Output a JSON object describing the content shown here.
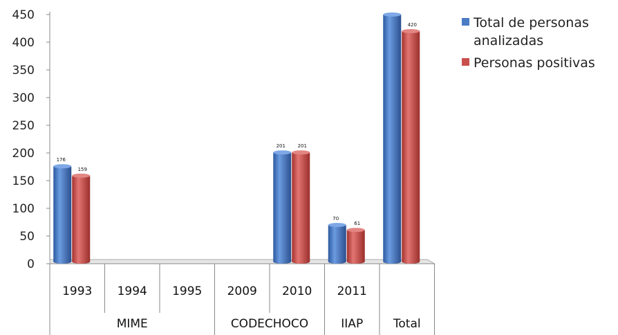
{
  "chart_data": {
    "type": "bar",
    "ylim": [
      0,
      450
    ],
    "yticks": [
      0,
      50,
      100,
      150,
      200,
      250,
      300,
      350,
      400,
      450
    ],
    "categories": [
      "1993",
      "1994",
      "1995",
      "2009",
      "2010",
      "2011",
      "Total"
    ],
    "groups": [
      {
        "label": "MIME",
        "categories": [
          "1993",
          "1994",
          "1995"
        ]
      },
      {
        "label": "CODECHOCO",
        "categories": [
          "2009",
          "2010"
        ]
      },
      {
        "label": "IIAP",
        "categories": [
          "2011"
        ]
      },
      {
        "label": "Total",
        "categories": []
      }
    ],
    "series": [
      {
        "name": "Total de personas analizadas",
        "color": "#4a7bc4",
        "values": [
          176,
          null,
          null,
          null,
          201,
          70,
          450
        ]
      },
      {
        "name": "Personas positivas",
        "color": "#c9504d",
        "values": [
          159,
          null,
          null,
          null,
          201,
          61,
          420
        ]
      }
    ],
    "data_labels": [
      [
        "176",
        "",
        "",
        "",
        "201",
        "70",
        ""
      ],
      [
        "159",
        "",
        "",
        "",
        "201",
        "61",
        "420"
      ]
    ],
    "legend_position": "right",
    "grid": false
  }
}
